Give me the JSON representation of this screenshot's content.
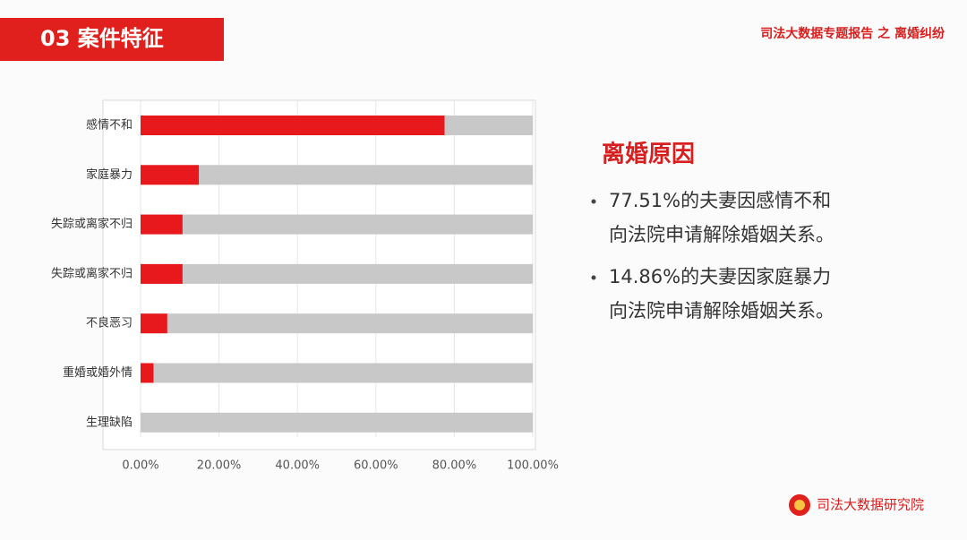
{
  "header": {
    "title": "03 案件特征",
    "report": "司法大数据专题报告 之 离婚纠纷"
  },
  "chart_data": {
    "type": "hbar",
    "categories": [
      "感情不和",
      "家庭暴力",
      "失踪或离家不归",
      "失踪或离家不归",
      "不良恶习",
      "重婚或婚外情",
      "生理缺陷"
    ],
    "values": [
      77.51,
      14.86,
      10.7,
      10.7,
      6.8,
      3.3,
      0
    ],
    "color": "#e8191c",
    "track_color": "#c8c8c8",
    "xlim": [
      0,
      100
    ],
    "xticks": [
      {
        "value": 0,
        "label": "0.00%"
      },
      {
        "value": 20,
        "label": "20.00%"
      },
      {
        "value": 40,
        "label": "40.00%"
      },
      {
        "value": 60,
        "label": "60.00%"
      },
      {
        "value": 80,
        "label": "80.00%"
      },
      {
        "value": 100,
        "label": "100.00%"
      }
    ],
    "grid": true
  },
  "panel": {
    "title": "离婚原因",
    "bullets": [
      [
        "77.51%的夫妻因感情不和",
        "向法院申请解除婚姻关系。"
      ],
      [
        "14.86%的夫妻因家庭暴力",
        "向法院申请解除婚姻关系。"
      ]
    ]
  },
  "footer": {
    "org": "司法大数据研究院"
  }
}
